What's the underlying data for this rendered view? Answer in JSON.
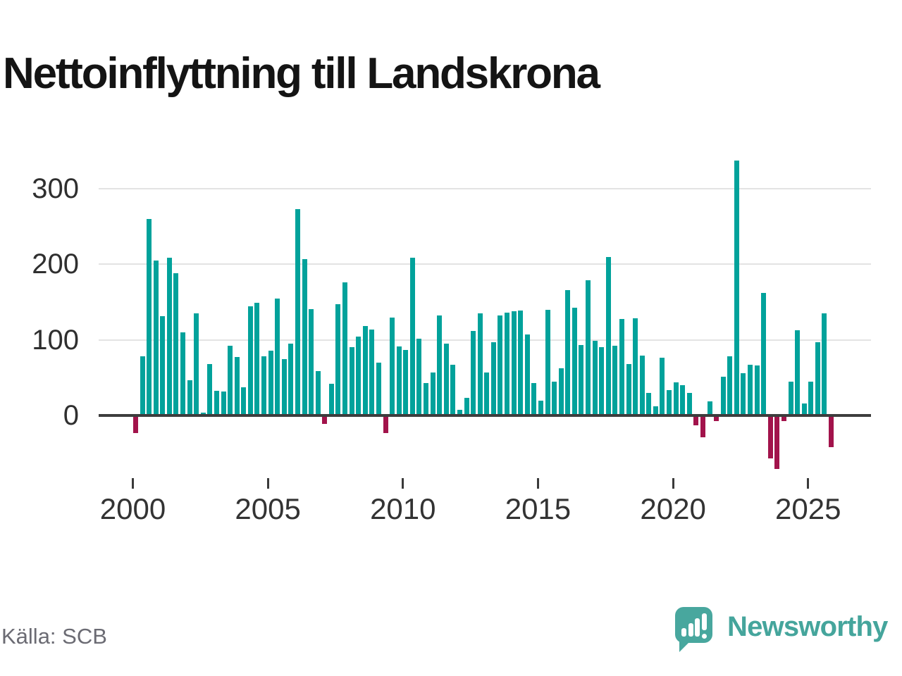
{
  "header": {
    "title": "Nettoinflyttning till Landskrona"
  },
  "chart_data": {
    "type": "bar",
    "title": "Nettoinflyttning till Landskrona",
    "frequency": "quarterly",
    "x_start": "2000Q1",
    "x_end": "2025Q4",
    "categories": [
      "2000Q1",
      "2000Q2",
      "2000Q3",
      "2000Q4",
      "2001Q1",
      "2001Q2",
      "2001Q3",
      "2001Q4",
      "2002Q1",
      "2002Q2",
      "2002Q3",
      "2002Q4",
      "2003Q1",
      "2003Q2",
      "2003Q3",
      "2003Q4",
      "2004Q1",
      "2004Q2",
      "2004Q3",
      "2004Q4",
      "2005Q1",
      "2005Q2",
      "2005Q3",
      "2005Q4",
      "2006Q1",
      "2006Q2",
      "2006Q3",
      "2006Q4",
      "2007Q1",
      "2007Q2",
      "2007Q3",
      "2007Q4",
      "2008Q1",
      "2008Q2",
      "2008Q3",
      "2008Q4",
      "2009Q1",
      "2009Q2",
      "2009Q3",
      "2009Q4",
      "2010Q1",
      "2010Q2",
      "2010Q3",
      "2010Q4",
      "2011Q1",
      "2011Q2",
      "2011Q3",
      "2011Q4",
      "2012Q1",
      "2012Q2",
      "2012Q3",
      "2012Q4",
      "2013Q1",
      "2013Q2",
      "2013Q3",
      "2013Q4",
      "2014Q1",
      "2014Q2",
      "2014Q3",
      "2014Q4",
      "2015Q1",
      "2015Q2",
      "2015Q3",
      "2015Q4",
      "2016Q1",
      "2016Q2",
      "2016Q3",
      "2016Q4",
      "2017Q1",
      "2017Q2",
      "2017Q3",
      "2017Q4",
      "2018Q1",
      "2018Q2",
      "2018Q3",
      "2018Q4",
      "2019Q1",
      "2019Q2",
      "2019Q3",
      "2019Q4",
      "2020Q1",
      "2020Q2",
      "2020Q3",
      "2020Q4",
      "2021Q1",
      "2021Q2",
      "2021Q3",
      "2021Q4",
      "2022Q1",
      "2022Q2",
      "2022Q3",
      "2022Q4",
      "2023Q1",
      "2023Q2",
      "2023Q3",
      "2023Q4",
      "2024Q1",
      "2024Q2",
      "2024Q3",
      "2024Q4",
      "2025Q1",
      "2025Q2",
      "2025Q3",
      "2025Q4"
    ],
    "values": [
      -23,
      78,
      260,
      205,
      131,
      209,
      188,
      110,
      47,
      135,
      4,
      68,
      33,
      32,
      92,
      77,
      37,
      144,
      149,
      78,
      86,
      155,
      75,
      95,
      273,
      207,
      141,
      59,
      -11,
      42,
      147,
      176,
      90,
      104,
      118,
      114,
      70,
      -23,
      130,
      91,
      87,
      209,
      102,
      43,
      57,
      132,
      95,
      67,
      7,
      23,
      112,
      135,
      57,
      97,
      132,
      136,
      138,
      139,
      107,
      43,
      20,
      140,
      45,
      62,
      166,
      143,
      93,
      179,
      99,
      90,
      210,
      92,
      128,
      68,
      129,
      79,
      30,
      12,
      76,
      34,
      44,
      40,
      30,
      -13,
      -29,
      19,
      -7,
      51,
      78,
      337,
      56,
      67,
      66,
      162,
      -57,
      -71,
      -7,
      45,
      113,
      16,
      45,
      97,
      135,
      -42
    ],
    "y_ticks": [
      0,
      100,
      200,
      300
    ],
    "x_tick_labels": [
      "2000",
      "2005",
      "2010",
      "2015",
      "2020",
      "2025"
    ],
    "x_tick_years": [
      2000,
      2005,
      2010,
      2015,
      2020,
      2025
    ],
    "ylim": [
      -80,
      350
    ],
    "grid": "horizontal",
    "legend": "none",
    "colors": {
      "positive_bar": "#01a29b",
      "negative_bar": "#a2134b",
      "zero_axis": "#3d3d3d",
      "gridline": "#e3e3e3"
    }
  },
  "footer": {
    "source": "Källa: SCB",
    "brand": "Newsworthy",
    "brand_color": "#45a59c"
  }
}
